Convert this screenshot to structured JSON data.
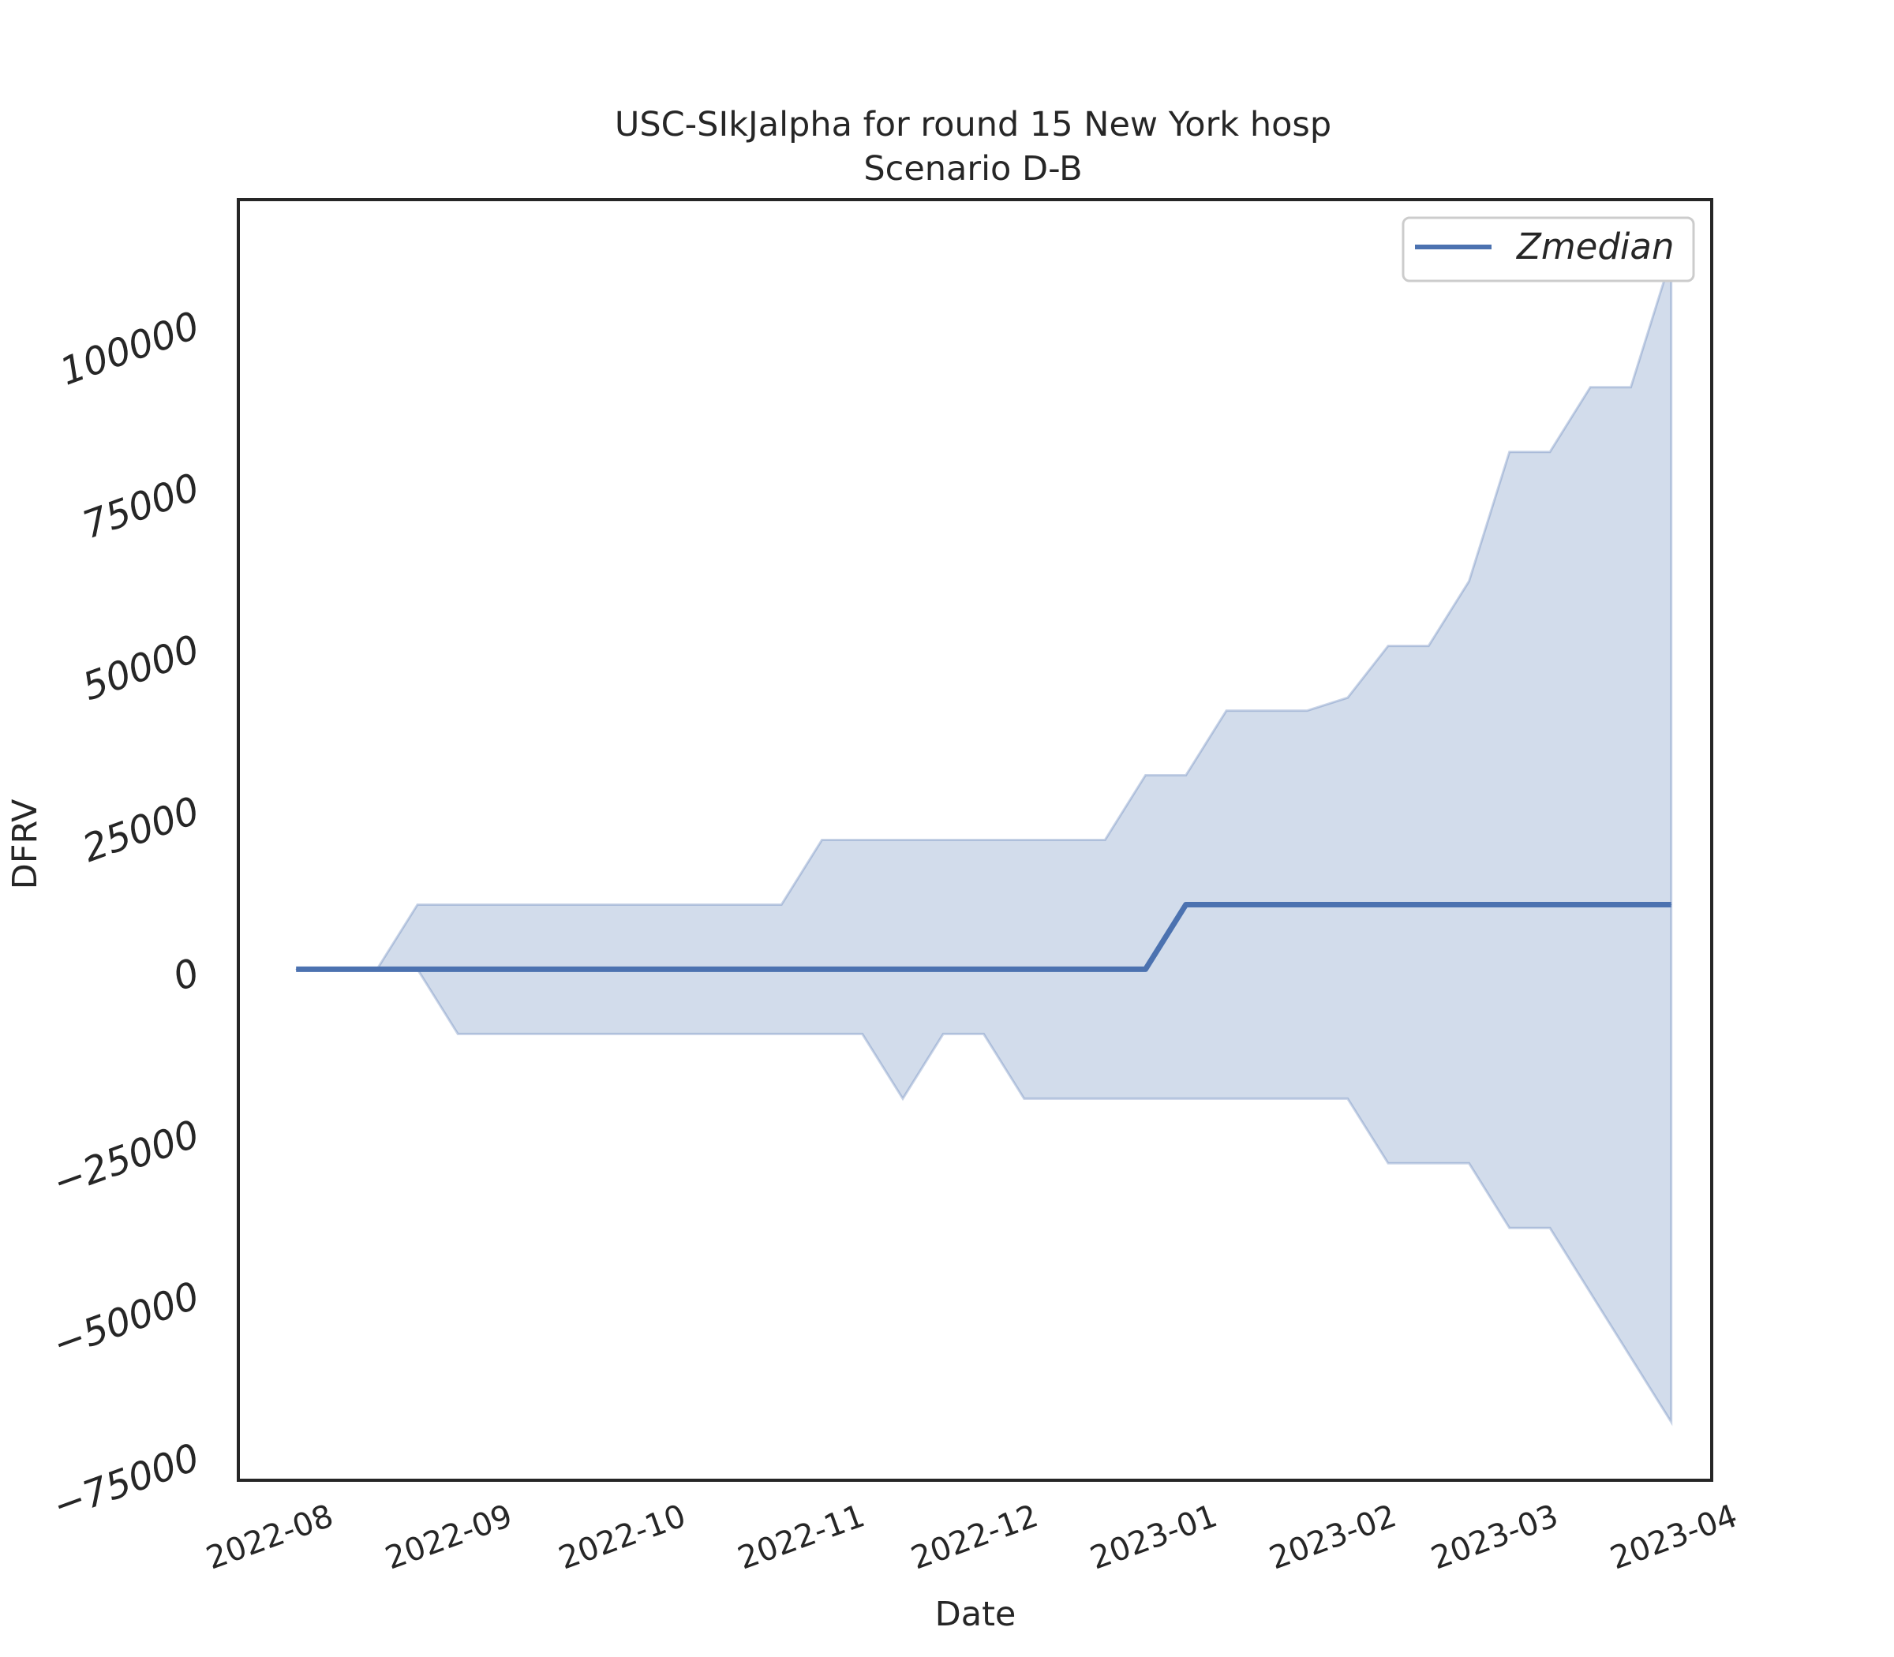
{
  "chart_data": {
    "type": "line",
    "title": "USC-SIkJalpha for round 15 New York hosp",
    "subtitle": "Scenario D-B",
    "xlabel": "Date",
    "ylabel": "DFRV",
    "x_ticks": [
      "2022-08",
      "2022-09",
      "2022-10",
      "2022-11",
      "2022-12",
      "2023-01",
      "2023-02",
      "2023-03",
      "2023-04"
    ],
    "y_ticks": [
      "−75000",
      "−50000",
      "−25000",
      "0",
      "25000",
      "50000",
      "75000",
      "100000"
    ],
    "xlim": [
      "2022-07-20",
      "2023-04-01"
    ],
    "ylim": [
      -79000,
      119000
    ],
    "grid": false,
    "legend": {
      "position": "top-right",
      "entries": [
        "Zmedian"
      ]
    },
    "colors": {
      "line": "#4c72b0",
      "band": "#4c72b0"
    },
    "x": [
      "2022-07-30",
      "2022-08-06",
      "2022-08-13",
      "2022-08-20",
      "2022-08-27",
      "2022-09-03",
      "2022-09-10",
      "2022-09-17",
      "2022-09-24",
      "2022-10-01",
      "2022-10-08",
      "2022-10-15",
      "2022-10-22",
      "2022-10-29",
      "2022-11-05",
      "2022-11-12",
      "2022-11-19",
      "2022-11-26",
      "2022-12-03",
      "2022-12-10",
      "2022-12-17",
      "2022-12-24",
      "2022-12-31",
      "2023-01-07",
      "2023-01-14",
      "2023-01-21",
      "2023-01-28",
      "2023-02-04",
      "2023-02-11",
      "2023-02-18",
      "2023-02-25",
      "2023-03-04",
      "2023-03-11",
      "2023-03-18",
      "2023-03-25"
    ],
    "series": [
      {
        "name": "Zmedian",
        "values": [
          0,
          0,
          0,
          0,
          0,
          0,
          0,
          0,
          0,
          0,
          0,
          0,
          0,
          0,
          0,
          0,
          0,
          0,
          0,
          0,
          0,
          0,
          10000,
          10000,
          10000,
          10000,
          10000,
          10000,
          10000,
          10000,
          10000,
          10000,
          10000,
          10000,
          10000
        ]
      }
    ],
    "band": {
      "lower": [
        0,
        0,
        0,
        0,
        -10000,
        -10000,
        -10000,
        -10000,
        -10000,
        -10000,
        -10000,
        -10000,
        -10000,
        -10000,
        -10000,
        -20000,
        -10000,
        -10000,
        -20000,
        -20000,
        -20000,
        -20000,
        -20000,
        -20000,
        -20000,
        -20000,
        -20000,
        -30000,
        -30000,
        -30000,
        -40000,
        -40000,
        -50000,
        -60000,
        -70000
      ],
      "upper": [
        0,
        0,
        0,
        10000,
        10000,
        10000,
        10000,
        10000,
        10000,
        10000,
        10000,
        10000,
        10000,
        20000,
        20000,
        20000,
        20000,
        20000,
        20000,
        20000,
        20000,
        30000,
        30000,
        40000,
        40000,
        40000,
        42000,
        50000,
        50000,
        60000,
        80000,
        80000,
        90000,
        90000,
        110000
      ]
    },
    "band_extra": {
      "x": "2023-03-25",
      "lower": -70000,
      "upper": 110000
    }
  }
}
